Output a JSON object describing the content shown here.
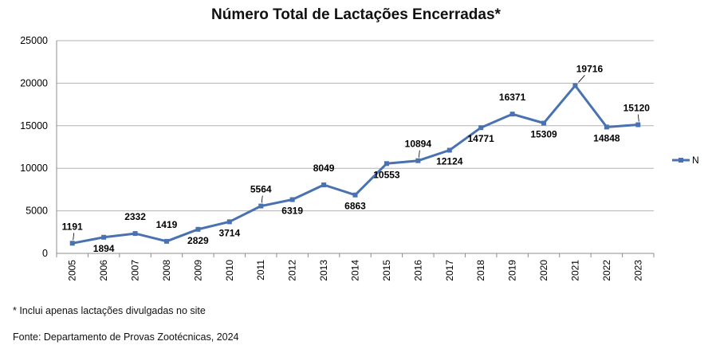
{
  "chart_data": {
    "type": "line",
    "title": "Número Total de Lactações Encerradas*",
    "xlabel": "",
    "ylabel": "",
    "categories": [
      "2005",
      "2006",
      "2007",
      "2008",
      "2009",
      "2010",
      "2011",
      "2012",
      "2013",
      "2014",
      "2015",
      "2016",
      "2017",
      "2018",
      "2019",
      "2020",
      "2021",
      "2022",
      "2023"
    ],
    "series": [
      {
        "name": "N",
        "values": [
          1191,
          1894,
          2332,
          1419,
          2829,
          3714,
          5564,
          6319,
          8049,
          6863,
          10553,
          10894,
          12124,
          14771,
          16371,
          15309,
          19716,
          14848,
          15120
        ],
        "color": "#4a72b0"
      }
    ],
    "ylim": [
      0,
      25000
    ],
    "yticks": [
      "0",
      "5000",
      "10000",
      "15000",
      "20000",
      "25000"
    ],
    "grid": true,
    "legend_position": "right",
    "marker": "square"
  },
  "notes": {
    "footnote": "* Inclui apenas lactações divulgadas no site",
    "source": "Fonte: Departamento de Provas Zootécnicas, 2024"
  }
}
